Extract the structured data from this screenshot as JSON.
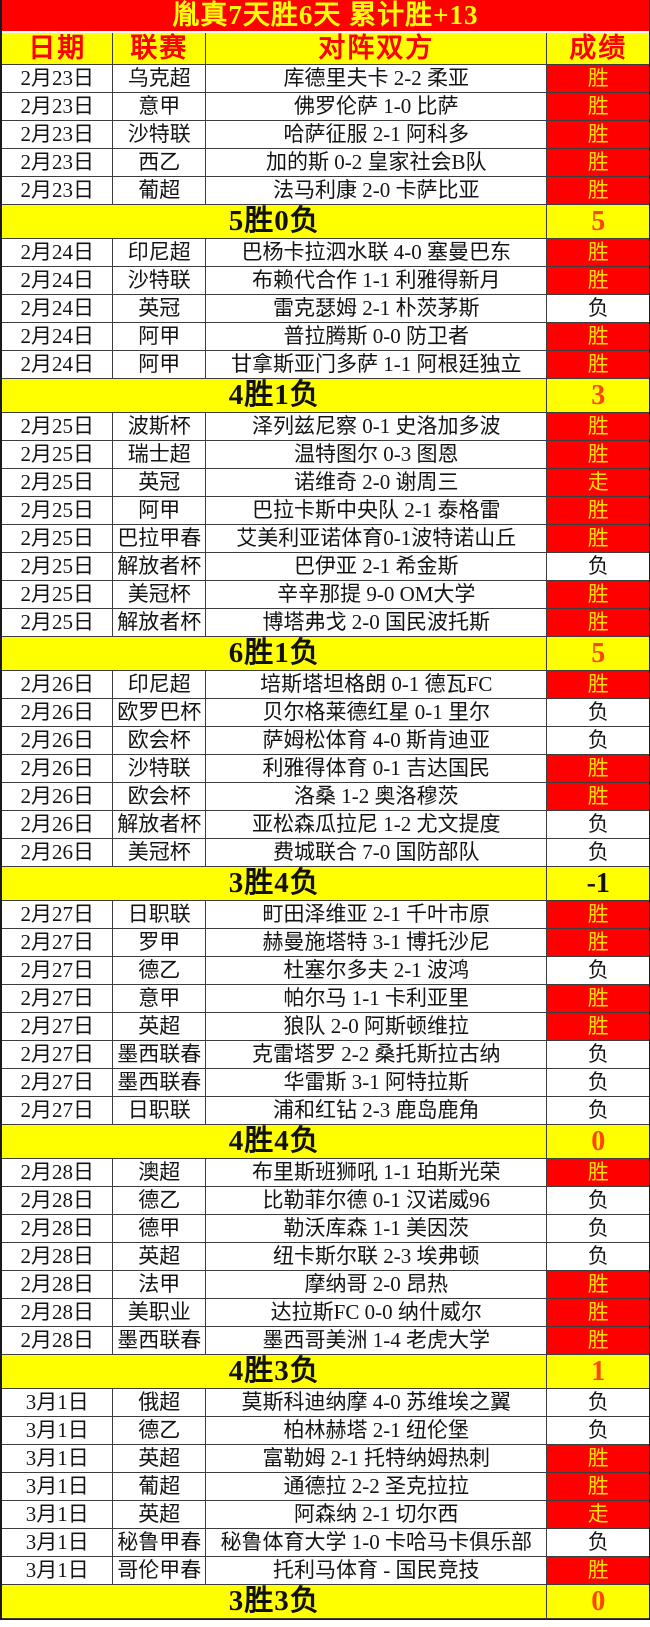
{
  "title": "胤真7天胜6天  累计胜+13",
  "colors": {
    "title_bg": "#fe0000",
    "title_text": "#ffff00",
    "header_bg": "#ffff00",
    "header_text": "#fe0000",
    "win_bg": "#fe0000",
    "win_text": "#ffdf00",
    "loss_bg": "#ffffff",
    "loss_text": "#141414",
    "summary_bg": "#ffff00",
    "summary_score_positive": "#ff4500",
    "summary_score_negative": "#111111"
  },
  "chart_data": {
    "type": "table",
    "title": "胤真7天胜6天  累计胜+13",
    "columns": [
      "日期",
      "联赛",
      "对阵双方",
      "成绩"
    ],
    "result_legend": {
      "win": "胜",
      "loss": "负",
      "push": "走"
    },
    "sections": [
      {
        "rows": [
          {
            "date": "2月23日",
            "league": "乌克超",
            "match": "库德里夫卡 2-2 柔亚",
            "result": "胜"
          },
          {
            "date": "2月23日",
            "league": "意甲",
            "match": "佛罗伦萨 1-0 比萨",
            "result": "胜"
          },
          {
            "date": "2月23日",
            "league": "沙特联",
            "match": "哈萨征服 2-1 阿科多",
            "result": "胜"
          },
          {
            "date": "2月23日",
            "league": "西乙",
            "match": "加的斯 0-2 皇家社会B队",
            "result": "胜"
          },
          {
            "date": "2月23日",
            "league": "葡超",
            "match": "法马利康 2-0 卡萨比亚",
            "result": "胜"
          }
        ],
        "summary": {
          "label": "5胜0负",
          "score": "5"
        }
      },
      {
        "rows": [
          {
            "date": "2月24日",
            "league": "印尼超",
            "match": "巴杨卡拉泗水联 4-0 塞曼巴东",
            "result": "胜"
          },
          {
            "date": "2月24日",
            "league": "沙特联",
            "match": "布赖代合作 1-1 利雅得新月",
            "result": "胜"
          },
          {
            "date": "2月24日",
            "league": "英冠",
            "match": "雷克瑟姆 2-1 朴茨茅斯",
            "result": "负"
          },
          {
            "date": "2月24日",
            "league": "阿甲",
            "match": "普拉腾斯 0-0 防卫者",
            "result": "胜"
          },
          {
            "date": "2月24日",
            "league": "阿甲",
            "match": "甘拿斯亚门多萨 1-1 阿根廷独立",
            "result": "胜"
          }
        ],
        "summary": {
          "label": "4胜1负",
          "score": "3"
        }
      },
      {
        "rows": [
          {
            "date": "2月25日",
            "league": "波斯杯",
            "match": "泽列兹尼察 0-1 史洛加多波",
            "result": "胜"
          },
          {
            "date": "2月25日",
            "league": "瑞士超",
            "match": "温特图尔 0-3 图恩",
            "result": "胜"
          },
          {
            "date": "2月25日",
            "league": "英冠",
            "match": "诺维奇 2-0 谢周三",
            "result": "走"
          },
          {
            "date": "2月25日",
            "league": "阿甲",
            "match": "巴拉卡斯中央队 2-1 泰格雷",
            "result": "胜"
          },
          {
            "date": "2月25日",
            "league": "巴拉甲春",
            "match": "艾美利亚诺体育0-1波特诺山丘",
            "result": "胜"
          },
          {
            "date": "2月25日",
            "league": "解放者杯",
            "match": "巴伊亚 2-1 希金斯",
            "result": "负"
          },
          {
            "date": "2月25日",
            "league": "美冠杯",
            "match": "辛辛那提 9-0 OM大学",
            "result": "胜"
          },
          {
            "date": "2月25日",
            "league": "解放者杯",
            "match": "博塔弗戈 2-0 国民波托斯",
            "result": "胜"
          }
        ],
        "summary": {
          "label": "6胜1负",
          "score": "5"
        }
      },
      {
        "rows": [
          {
            "date": "2月26日",
            "league": "印尼超",
            "match": "培斯塔坦格朗 0-1 德瓦FC",
            "result": "胜"
          },
          {
            "date": "2月26日",
            "league": "欧罗巴杯",
            "match": "贝尔格莱德红星 0-1 里尔",
            "result": "负"
          },
          {
            "date": "2月26日",
            "league": "欧会杯",
            "match": "萨姆松体育 4-0 斯肯迪亚",
            "result": "负"
          },
          {
            "date": "2月26日",
            "league": "沙特联",
            "match": "利雅得体育 0-1 吉达国民",
            "result": "胜"
          },
          {
            "date": "2月26日",
            "league": "欧会杯",
            "match": "洛桑 1-2 奥洛穆茨",
            "result": "胜"
          },
          {
            "date": "2月26日",
            "league": "解放者杯",
            "match": "亚松森瓜拉尼 1-2 尤文提度",
            "result": "负"
          },
          {
            "date": "2月26日",
            "league": "美冠杯",
            "match": "费城联合 7-0 国防部队",
            "result": "负"
          }
        ],
        "summary": {
          "label": "3胜4负",
          "score": "-1"
        }
      },
      {
        "rows": [
          {
            "date": "2月27日",
            "league": "日职联",
            "match": "町田泽维亚 2-1 千叶市原",
            "result": "胜"
          },
          {
            "date": "2月27日",
            "league": "罗甲",
            "match": "赫曼施塔特 3-1 博托沙尼",
            "result": "胜"
          },
          {
            "date": "2月27日",
            "league": "德乙",
            "match": "杜塞尔多夫 2-1 波鸿",
            "result": "负"
          },
          {
            "date": "2月27日",
            "league": "意甲",
            "match": "帕尔马 1-1 卡利亚里",
            "result": "胜"
          },
          {
            "date": "2月27日",
            "league": "英超",
            "match": "狼队 2-0 阿斯顿维拉",
            "result": "胜"
          },
          {
            "date": "2月27日",
            "league": "墨西联春",
            "match": "克雷塔罗 2-2 桑托斯拉古纳",
            "result": "负"
          },
          {
            "date": "2月27日",
            "league": "墨西联春",
            "match": "华雷斯 3-1 阿特拉斯",
            "result": "负"
          },
          {
            "date": "2月27日",
            "league": "日职联",
            "match": "浦和红钻 2-3 鹿岛鹿角",
            "result": "负"
          }
        ],
        "summary": {
          "label": "4胜4负",
          "score": "0"
        }
      },
      {
        "rows": [
          {
            "date": "2月28日",
            "league": "澳超",
            "match": "布里斯班狮吼 1-1 珀斯光荣",
            "result": "胜"
          },
          {
            "date": "2月28日",
            "league": "德乙",
            "match": "比勒菲尔德 0-1 汉诺威96",
            "result": "负"
          },
          {
            "date": "2月28日",
            "league": "德甲",
            "match": "勒沃库森 1-1 美因茨",
            "result": "负"
          },
          {
            "date": "2月28日",
            "league": "英超",
            "match": "纽卡斯尔联 2-3 埃弗顿",
            "result": "负"
          },
          {
            "date": "2月28日",
            "league": "法甲",
            "match": "摩纳哥 2-0 昂热",
            "result": "胜"
          },
          {
            "date": "2月28日",
            "league": "美职业",
            "match": "达拉斯FC 0-0 纳什威尔",
            "result": "胜"
          },
          {
            "date": "2月28日",
            "league": "墨西联春",
            "match": "墨西哥美洲 1-4 老虎大学",
            "result": "胜"
          }
        ],
        "summary": {
          "label": "4胜3负",
          "score": "1"
        }
      },
      {
        "rows": [
          {
            "date": "3月1日",
            "league": "俄超",
            "match": "莫斯科迪纳摩 4-0 苏维埃之翼",
            "result": "负"
          },
          {
            "date": "3月1日",
            "league": "德乙",
            "match": "柏林赫塔 2-1 纽伦堡",
            "result": "负"
          },
          {
            "date": "3月1日",
            "league": "英超",
            "match": "富勒姆 2-1 托特纳姆热刺",
            "result": "胜"
          },
          {
            "date": "3月1日",
            "league": "葡超",
            "match": "通德拉 2-2 圣克拉拉",
            "result": "胜"
          },
          {
            "date": "3月1日",
            "league": "英超",
            "match": "阿森纳 2-1 切尔西",
            "result": "走"
          },
          {
            "date": "3月1日",
            "league": "秘鲁甲春",
            "match": "秘鲁体育大学 1-0 卡哈马卡俱乐部",
            "result": "负"
          },
          {
            "date": "3月1日",
            "league": "哥伦甲春",
            "match": "托利马体育 - 国民竞技",
            "result": "胜"
          }
        ],
        "summary": {
          "label": "3胜3负",
          "score": "0"
        }
      }
    ]
  }
}
